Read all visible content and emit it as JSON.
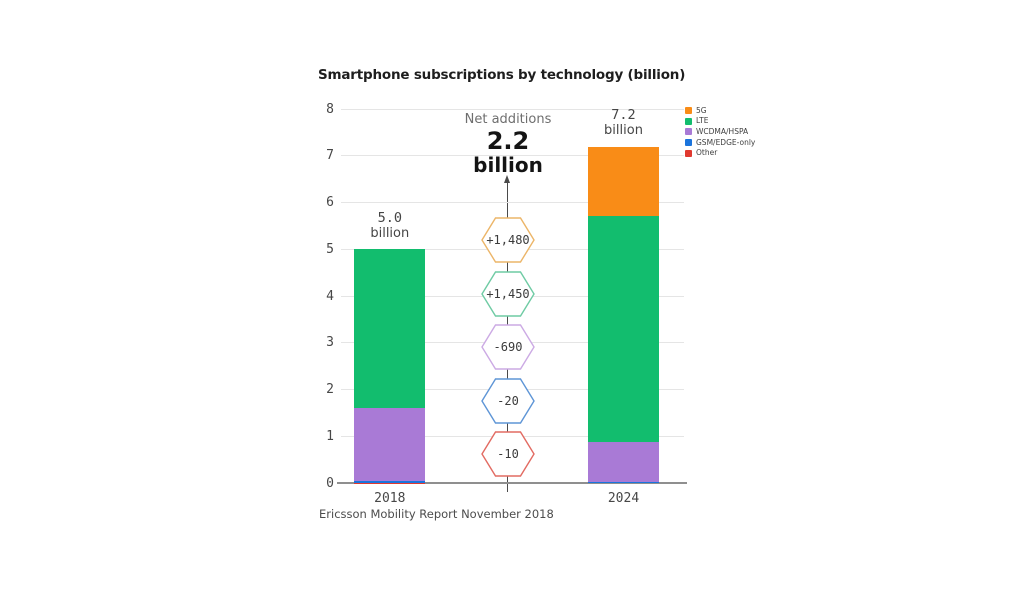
{
  "title": "Smartphone subscriptions by technology (billion)",
  "source_note": "Ericsson Mobility Report November 2018",
  "net_additions": {
    "label": "Net additions",
    "value": "2.2",
    "unit": "billion",
    "badge_values_unit": "millions",
    "badges": [
      {
        "series": "5G",
        "label": "+1,480",
        "outline_color": "#ECB568"
      },
      {
        "series": "LTE",
        "label": "+1,450",
        "outline_color": "#6FCBA4"
      },
      {
        "series": "WCDMA/HSPA",
        "label": "-690",
        "outline_color": "#CCAAE4"
      },
      {
        "series": "GSM/EDGE-only",
        "label": "-20",
        "outline_color": "#5E95D6"
      },
      {
        "series": "Other",
        "label": "-10",
        "outline_color": "#E26B62"
      }
    ]
  },
  "chart_data": {
    "type": "bar",
    "stacked": true,
    "title": "Smartphone subscriptions by technology (billion)",
    "categories": [
      "2018",
      "2024"
    ],
    "series": [
      {
        "name": "5G",
        "color": "#F98C17",
        "values": [
          0,
          1.48
        ]
      },
      {
        "name": "LTE",
        "color": "#12BD6E",
        "values": [
          3.4,
          4.84
        ]
      },
      {
        "name": "WCDMA/HSPA",
        "color": "#A97AD6",
        "values": [
          1.55,
          0.85
        ]
      },
      {
        "name": "GSM/EDGE-only",
        "color": "#1B74DC",
        "values": [
          0.04,
          0.02
        ]
      },
      {
        "name": "Other",
        "color": "#E0392F",
        "values": [
          0.01,
          0.005
        ]
      }
    ],
    "stack_order_bottom_up": [
      "Other",
      "GSM/EDGE-only",
      "WCDMA/HSPA",
      "LTE",
      "5G"
    ],
    "totals": [
      {
        "category": "2018",
        "value_label": "5.0",
        "unit_label": "billion"
      },
      {
        "category": "2024",
        "value_label": "7.2",
        "unit_label": "billion"
      }
    ],
    "ylim": [
      0,
      8
    ],
    "y_ticks": [
      0,
      1,
      2,
      3,
      4,
      5,
      6,
      7,
      8
    ],
    "grid": true,
    "legend_position": "top-right",
    "annotations": {
      "net_additions_millions": {
        "5G": 1480,
        "LTE": 1450,
        "WCDMA/HSPA": -690,
        "GSM/EDGE-only": -20,
        "Other": -10
      },
      "net_additions_total_billion": 2.2
    },
    "source": "Ericsson Mobility Report November 2018"
  }
}
